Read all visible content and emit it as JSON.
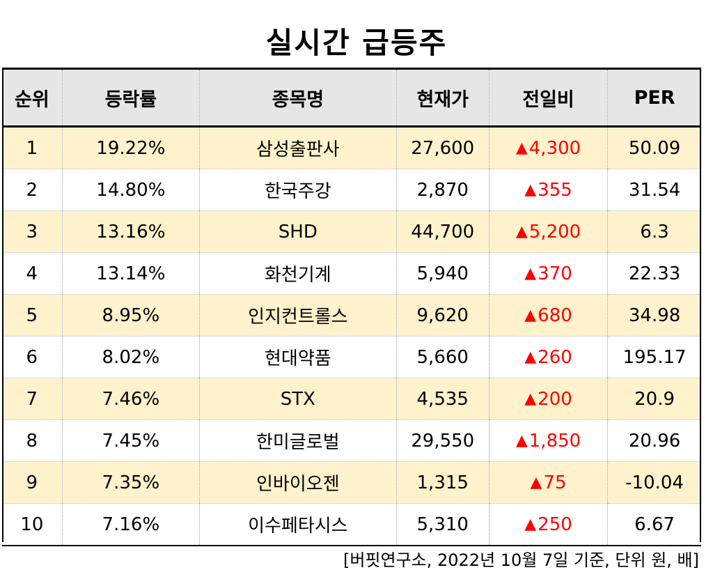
{
  "title": "실시간 급등주",
  "headers": {
    "rank": "순위",
    "rate": "등락률",
    "name": "종목명",
    "price": "현재가",
    "change": "전일비",
    "per": "PER"
  },
  "up_symbol": "▲",
  "up_color": "#ff0000",
  "rows": [
    {
      "rank": "1",
      "rate": "19.22%",
      "name": "삼성출판사",
      "price": "27,600",
      "change": "4,300",
      "per": "50.09"
    },
    {
      "rank": "2",
      "rate": "14.80%",
      "name": "한국주강",
      "price": "2,870",
      "change": "355",
      "per": "31.54"
    },
    {
      "rank": "3",
      "rate": "13.16%",
      "name": "SHD",
      "price": "44,700",
      "change": "5,200",
      "per": "6.3"
    },
    {
      "rank": "4",
      "rate": "13.14%",
      "name": "화천기계",
      "price": "5,940",
      "change": "370",
      "per": "22.33"
    },
    {
      "rank": "5",
      "rate": "8.95%",
      "name": "인지컨트롤스",
      "price": "9,620",
      "change": "680",
      "per": "34.98"
    },
    {
      "rank": "6",
      "rate": "8.02%",
      "name": "현대약품",
      "price": "5,660",
      "change": "260",
      "per": "195.17"
    },
    {
      "rank": "7",
      "rate": "7.46%",
      "name": "STX",
      "price": "4,535",
      "change": "200",
      "per": "20.9"
    },
    {
      "rank": "8",
      "rate": "7.45%",
      "name": "한미글로벌",
      "price": "29,550",
      "change": "1,850",
      "per": "20.96"
    },
    {
      "rank": "9",
      "rate": "7.35%",
      "name": "인바이오젠",
      "price": "1,315",
      "change": "75",
      "per": "-10.04"
    },
    {
      "rank": "10",
      "rate": "7.16%",
      "name": "이수페타시스",
      "price": "5,310",
      "change": "250",
      "per": "6.67"
    }
  ],
  "source": "[버핏연구소, 2022년 10월 7일 기준, 단위 원, 배]"
}
